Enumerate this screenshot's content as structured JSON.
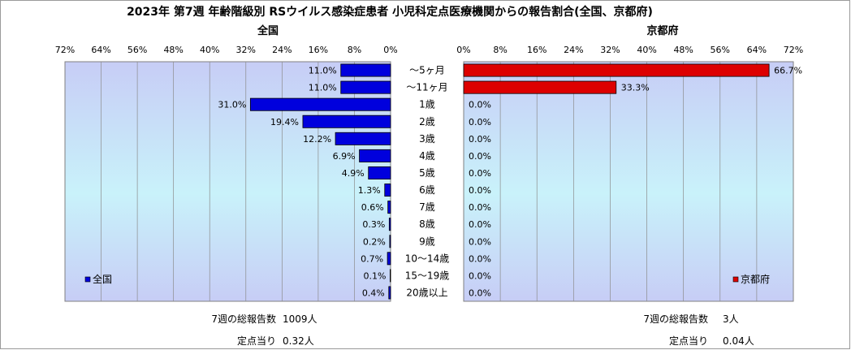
{
  "title": "2023年 第7週 年齢階級別 RSウイルス感染症患者 小児科定点医療機関からの報告割合(全国、京都府)",
  "chart_data": {
    "type": "bar",
    "orientation": "horizontal",
    "categories": [
      "～5ヶ月",
      "～11ヶ月",
      "1歳",
      "2歳",
      "3歳",
      "4歳",
      "5歳",
      "6歳",
      "7歳",
      "8歳",
      "9歳",
      "10～14歳",
      "15～19歳",
      "20歳以上"
    ],
    "series": [
      {
        "name": "全国",
        "panel_title": "全国",
        "color": "#0000dd",
        "values": [
          11.0,
          11.0,
          31.0,
          19.4,
          12.2,
          6.9,
          4.9,
          1.3,
          0.6,
          0.3,
          0.2,
          0.7,
          0.1,
          0.4
        ],
        "value_labels": [
          "11.0%",
          "11.0%",
          "31.0%",
          "19.4%",
          "12.2%",
          "6.9%",
          "4.9%",
          "1.3%",
          "0.6%",
          "0.3%",
          "0.2%",
          "0.7%",
          "0.1%",
          "0.4%"
        ],
        "direction": "left",
        "legend": "bottom-left"
      },
      {
        "name": "京都府",
        "panel_title": "京都府",
        "color": "#dd0000",
        "values": [
          66.7,
          33.3,
          0,
          0,
          0,
          0,
          0,
          0,
          0,
          0,
          0,
          0,
          0,
          0
        ],
        "value_labels": [
          "66.7%",
          "33.3%",
          "0.0%",
          "0.0%",
          "0.0%",
          "0.0%",
          "0.0%",
          "0.0%",
          "0.0%",
          "0.0%",
          "0.0%",
          "0.0%",
          "0.0%",
          "0.0%"
        ],
        "direction": "right",
        "legend": "bottom-right"
      }
    ],
    "xlim": [
      0,
      72
    ],
    "x_ticks": [
      0,
      8,
      16,
      24,
      32,
      40,
      48,
      56,
      64,
      72
    ],
    "x_tick_labels": [
      "0%",
      "8%",
      "16%",
      "24%",
      "32%",
      "40%",
      "48%",
      "56%",
      "64%",
      "72%"
    ],
    "grid": true,
    "plot_background": "#cfd8f7"
  },
  "stats": {
    "national": {
      "total_label": "7週の総報告数",
      "total_value": "1009人",
      "per_label": "定点当り",
      "per_value": "0.32人"
    },
    "kyoto": {
      "total_label": "7週の総報告数",
      "total_value": "3人",
      "per_label": "定点当り",
      "per_value": "0.04人"
    }
  }
}
